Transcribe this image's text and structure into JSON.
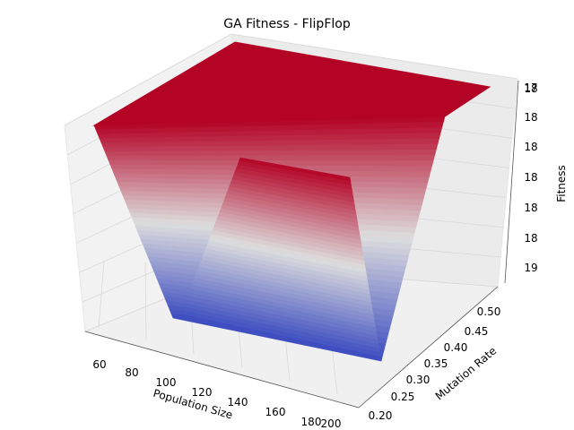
{
  "chart_data": {
    "type": "surface3d",
    "title": "GA Fitness - FlipFlop",
    "xlabel": "Population Size",
    "ylabel": "Mutation Rate",
    "zlabel": "Fitness",
    "x_ticks": [
      "60",
      "80",
      "100",
      "120",
      "140",
      "160",
      "180",
      "200"
    ],
    "y_ticks": [
      "0.20",
      "0.25",
      "0.30",
      "0.35",
      "0.40",
      "0.45",
      "0.50"
    ],
    "z_ticks": [
      "17",
      "18",
      "18",
      "18",
      "18",
      "18",
      "18",
      "19"
    ],
    "colormap": "coolwarm",
    "colormap_low": "#3b4cc0",
    "colormap_mid": "#dddddd",
    "colormap_high": "#b40426",
    "x": [
      50,
      200
    ],
    "y": [
      0.2,
      0.5
    ],
    "zlim": [
      16.5,
      19
    ],
    "grid": true
  }
}
